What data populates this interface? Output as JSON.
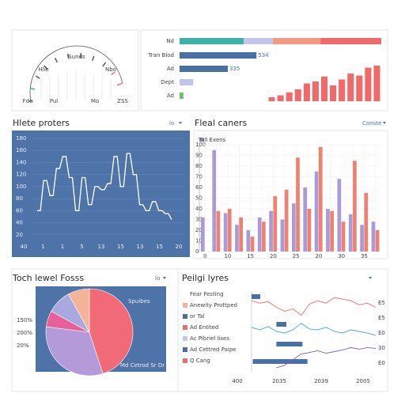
{
  "gauge": {
    "labels": [
      "Sunds",
      "Hlie",
      "Nbo",
      "Fde",
      "Pul",
      "Mo",
      "ZSS"
    ]
  },
  "hbars": {
    "xlim": [
      0,
      1400
    ],
    "stack": {
      "label": "Nd",
      "values": [
        445,
        203,
        330,
        422
      ],
      "colors": [
        "#3bb3a8",
        "#c3c6ec",
        "#f49a7c",
        "#f06a6a"
      ]
    },
    "rows": [
      {
        "label": "Tran Blod",
        "value": 534,
        "color": "#4a6fa5"
      },
      {
        "label": "Ad",
        "value": 335,
        "color": "#4a6fa5"
      },
      {
        "label": "Dept",
        "value": 95,
        "color": "#c5c5ea"
      },
      {
        "label": "Ad",
        "value": 27,
        "color": "#6cc070"
      }
    ],
    "columns": {
      "ylim": [
        0,
        40
      ],
      "color": "#f06a6a",
      "values": [
        4,
        6,
        9,
        12,
        18,
        20,
        25,
        16,
        22,
        28,
        26,
        34,
        36
      ]
    }
  },
  "line_panel": {
    "title": "Hlete proters",
    "control": "lo",
    "ylim": [
      0,
      180
    ],
    "yticks": [
      20,
      40,
      60,
      80,
      100,
      120,
      140,
      160,
      180
    ],
    "xlabels": [
      "40",
      "1",
      "1",
      "5",
      "13",
      "15",
      "13",
      "15",
      "20"
    ],
    "values": [
      60,
      60,
      110,
      110,
      85,
      85,
      130,
      130,
      150,
      150,
      115,
      115,
      60,
      60,
      115,
      115,
      70,
      70,
      100,
      100,
      95,
      95,
      105,
      105,
      150,
      150,
      100,
      100,
      155,
      155,
      120,
      120,
      70,
      70,
      60,
      60,
      75,
      75,
      60,
      60,
      55,
      55,
      45
    ]
  },
  "bar_panel": {
    "title": "Fleal caners",
    "control": "Conste",
    "legend": "Tall Exens",
    "ylim": [
      0,
      100
    ],
    "yticks": [
      0,
      10,
      20,
      30,
      40,
      50,
      60,
      70,
      80,
      90,
      100
    ],
    "categories": [
      "0",
      null,
      "10",
      null,
      "15",
      null,
      "20",
      null,
      "25",
      null,
      "20",
      null,
      "30",
      null,
      "35",
      null
    ],
    "series": [
      {
        "color": "#a99ad8",
        "values": [
          32,
          95,
          36,
          25,
          20,
          32,
          38,
          30,
          45,
          60,
          75,
          40,
          68,
          35,
          25,
          28
        ]
      },
      {
        "color": "#f08070",
        "values": [
          0,
          38,
          40,
          32,
          14,
          28,
          52,
          58,
          88,
          40,
          98,
          38,
          28,
          85,
          55,
          20
        ]
      }
    ]
  },
  "pie_panel": {
    "title": "Toch lewel Fosss",
    "control": "lo",
    "values": [
      45,
      32,
      6,
      9,
      8
    ],
    "colors": [
      "#f06a78",
      "#b49ad8",
      "#e8609a",
      "#a9a9e0",
      "#f4b49a"
    ],
    "labels": [
      "Spuibes",
      "Md Cetrod Sr Dr"
    ],
    "side_labels": [
      "150%",
      "200%",
      "20%"
    ]
  },
  "lines_panel": {
    "title": "Peilgi lyres",
    "legend": [
      {
        "label": "Fear Festing",
        "color": "#ffffff"
      },
      {
        "label": "Anewity Prottped",
        "color": "#f4b49a"
      },
      {
        "label": "or Tal",
        "color": "#4a6fa5"
      },
      {
        "label": "Ad Entited",
        "color": "#f06a6a"
      },
      {
        "label": "Ac Pibriel lises",
        "color": "#c5c5ea"
      },
      {
        "label": "Ad Cettred Paipe",
        "color": "#4a6fa5"
      },
      {
        "label": "Q Cang",
        "color": "#f06a78"
      }
    ],
    "xlabels": [
      "400",
      "2035",
      "2039",
      "2005"
    ],
    "right_labels": [
      "E5",
      "E5",
      "E0",
      "30",
      "E0"
    ],
    "ylim": [
      0,
      100
    ],
    "xlim": [
      0,
      100
    ],
    "series": [
      {
        "color": "#f06a6a",
        "values": [
          88,
          85,
          87,
          80,
          75,
          78,
          70,
          84,
          88,
          85,
          92,
          90,
          88,
          83,
          85,
          80
        ]
      },
      {
        "color": "#3fa3d8",
        "values": [
          55,
          52,
          56,
          50,
          48,
          52,
          60,
          53,
          52,
          55,
          50,
          48,
          52,
          50,
          48,
          45
        ]
      },
      {
        "color": "#7a5fb8",
        "values": [
          null,
          null,
          null,
          5,
          8,
          15,
          22,
          24,
          26,
          23,
          25,
          27,
          30,
          28,
          30,
          29
        ]
      }
    ],
    "gantt": [
      {
        "start": 0,
        "end": 7
      },
      {
        "start": 20,
        "end": 28
      },
      {
        "start": 20,
        "end": 41
      },
      {
        "start": 1,
        "end": 45
      }
    ],
    "gantt_color": "#4a6fa5"
  }
}
